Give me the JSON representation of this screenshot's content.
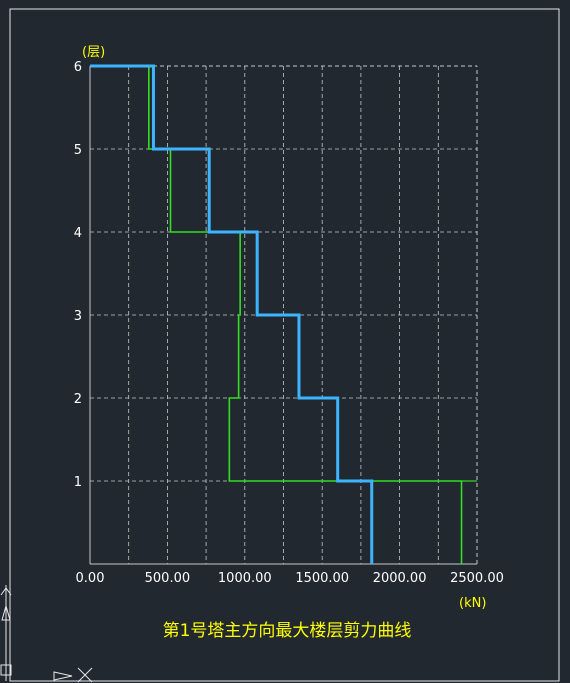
{
  "chart_data": {
    "type": "line",
    "title": "第1号塔主方向最大楼层剪力曲线",
    "xunit": "(kN)",
    "yunit": "(层)",
    "xlim": [
      0,
      2500
    ],
    "ylim": [
      0,
      6
    ],
    "x_ticks": [
      "0.00",
      "500.00",
      "1000.00",
      "1500.00",
      "2000.00",
      "2500.00"
    ],
    "y_ticks": [
      "1",
      "2",
      "3",
      "4",
      "5",
      "6"
    ],
    "grid": true,
    "series": [
      {
        "color": "#3db4ff",
        "steps": [
          {
            "floor": 6,
            "shear": 410
          },
          {
            "floor": 5,
            "shear": 770
          },
          {
            "floor": 4,
            "shear": 1080
          },
          {
            "floor": 3,
            "shear": 1350
          },
          {
            "floor": 2,
            "shear": 1600
          },
          {
            "floor": 1,
            "shear": 1820
          }
        ]
      },
      {
        "color": "#33dd22",
        "steps": [
          {
            "floor": 6,
            "shear": 380
          },
          {
            "floor": 5,
            "shear": 520
          },
          {
            "floor": 4,
            "shear": 970
          },
          {
            "floor": 3,
            "shear": 960
          },
          {
            "floor": 2,
            "shear": 900
          },
          {
            "floor": 1,
            "shear": 2400
          }
        ]
      }
    ]
  },
  "colors": {
    "background": "#212830",
    "grid": "#c8c8c8",
    "axis_text": "#ffffff",
    "title_text": "#ffff00",
    "frame": "#e8e8e8"
  }
}
